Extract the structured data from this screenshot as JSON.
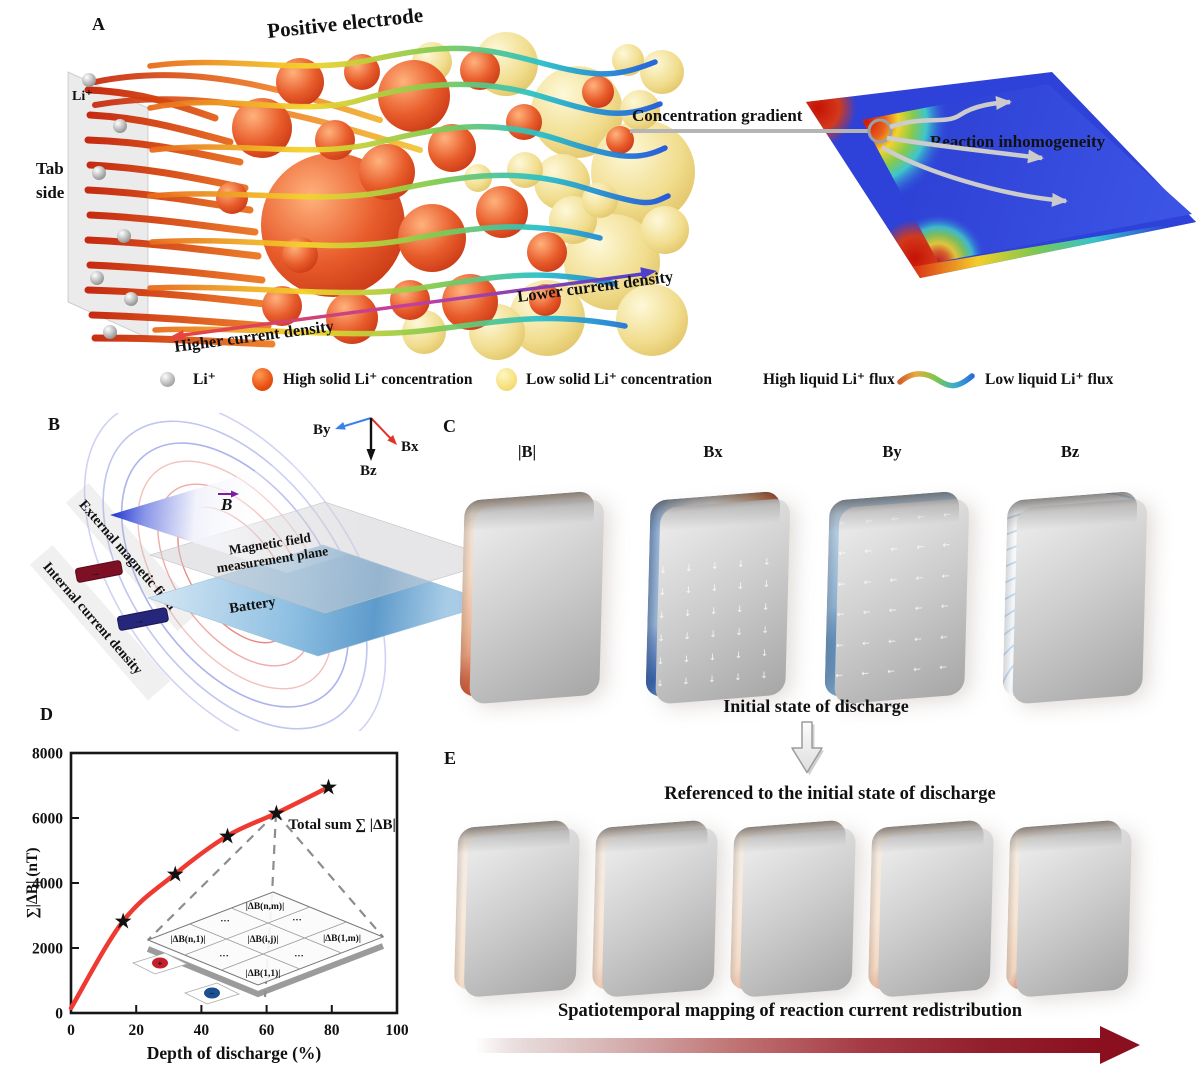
{
  "panel_labels": {
    "a": "A",
    "b": "B",
    "c": "C",
    "d": "D",
    "e": "E"
  },
  "panel_a": {
    "title": "Positive electrode",
    "tab_side_line1": "Tab",
    "tab_side_line2": "side",
    "li_label": "Li⁺",
    "higher_current": "Higher current density",
    "lower_current": "Lower current density",
    "concentration_gradient": "Concentration gradient",
    "reaction_inhomogeneity": "Reaction inhomogeneity"
  },
  "legend": {
    "li": "Li⁺",
    "high_solid": "High solid Li⁺ concentration",
    "low_solid": "Low solid Li⁺ concentration",
    "high_flux": "High liquid Li⁺ flux",
    "low_flux": "Low liquid Li⁺ flux"
  },
  "panel_b": {
    "external_field": "External magnetic field",
    "internal_current": "Internal current density",
    "b_vector": "B",
    "measurement_plane_line1": "Magnetic field",
    "measurement_plane_line2": "measurement plane",
    "battery": "Battery",
    "axis_bx": "Bx",
    "axis_by": "By",
    "axis_bz": "Bz"
  },
  "panel_c": {
    "maps": [
      "|B|",
      "Bx",
      "By",
      "Bz"
    ],
    "caption": "Initial state of discharge"
  },
  "chart_data": {
    "type": "line",
    "title": "",
    "xlabel": "Depth of discharge (%)",
    "ylabel": "∑|ΔB| (nT)",
    "xlim": [
      0,
      100
    ],
    "ylim": [
      0,
      8000
    ],
    "xticks": [
      0,
      20,
      40,
      60,
      80,
      100
    ],
    "yticks": [
      0,
      2000,
      4000,
      6000,
      8000
    ],
    "grid": false,
    "series": [
      {
        "name": "total-sum",
        "marker": "star",
        "color": "#ee3a31",
        "x": [
          0,
          16,
          32,
          48,
          63,
          79
        ],
        "y": [
          150,
          2830,
          4280,
          5450,
          6150,
          6950
        ]
      }
    ],
    "annotation": "Total sum ∑ |ΔB|",
    "inset": {
      "cell_nm": "|ΔB(n,m)|",
      "cell_n1": "|ΔB(n,1)|",
      "cell_ij": "|ΔB(i,j)|",
      "cell_1m": "|ΔB(1,m)|",
      "cell_11": "|ΔB(1,1)|",
      "dots": "···",
      "tab_plus": "+",
      "tab_minus": "−"
    }
  },
  "panel_e": {
    "referenced_caption": "Referenced to the initial state of discharge",
    "bottom_caption": "Spatiotemporal mapping of reaction current redistribution"
  },
  "colors": {
    "line_red": "#ee3a31",
    "star_grey": "#4d4d52",
    "plane_blue": "#2f46e0",
    "dark_red_arrow": "#8a0f1f",
    "axis_bx_red": "#e03428",
    "axis_by_blue": "#3b82e8",
    "b_vector_purple": "#7a1fa0",
    "high_solid_orange": "#e85212",
    "low_solid_yellow": "#f6e07e"
  }
}
